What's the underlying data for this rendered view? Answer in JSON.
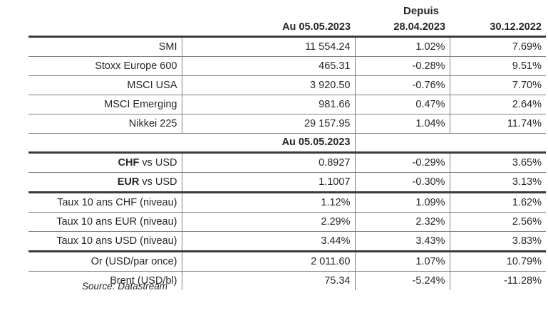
{
  "header": {
    "depuis": "Depuis",
    "col_current": "Au 05.05.2023",
    "col_week": "28.04.2023",
    "col_ytd": "30.12.2022"
  },
  "equities": [
    {
      "name": "SMI",
      "value": "11 554.24",
      "week": "1.02%",
      "ytd": "7.69%"
    },
    {
      "name": "Stoxx Europe 600",
      "value": "465.31",
      "week": "-0.28%",
      "ytd": "9.51%"
    },
    {
      "name": "MSCI USA",
      "value": "3 920.50",
      "week": "-0.76%",
      "ytd": "7.70%"
    },
    {
      "name": "MSCI Emerging",
      "value": "981.66",
      "week": "0.47%",
      "ytd": "2.64%"
    },
    {
      "name": "Nikkei 225",
      "value": "29 157.95",
      "week": "1.04%",
      "ytd": "11.74%"
    }
  ],
  "subheader": {
    "col_current": "Au 05.05.2023"
  },
  "fx": [
    {
      "name_bold": "CHF",
      "name_rest": " vs USD",
      "value": "0.8927",
      "week": "-0.29%",
      "ytd": "3.65%"
    },
    {
      "name_bold": "EUR",
      "name_rest": " vs USD",
      "value": "1.1007",
      "week": "-0.30%",
      "ytd": "3.13%"
    }
  ],
  "rates": [
    {
      "name": "Taux 10 ans CHF (niveau)",
      "value": "1.12%",
      "week": "1.09%",
      "ytd": "1.62%"
    },
    {
      "name": "Taux 10 ans EUR (niveau)",
      "value": "2.29%",
      "week": "2.32%",
      "ytd": "2.56%"
    },
    {
      "name": "Taux 10 ans USD (niveau)",
      "value": "3.44%",
      "week": "3.43%",
      "ytd": "3.83%"
    }
  ],
  "commodities": [
    {
      "name": "Or (USD/par once)",
      "value": "2 011.60",
      "week": "1.07%",
      "ytd": "10.79%"
    },
    {
      "name": "Brent (USD/bl)",
      "value": "75.34",
      "week": "-5.24%",
      "ytd": "-11.28%"
    }
  ],
  "source": "Source: Datastream"
}
